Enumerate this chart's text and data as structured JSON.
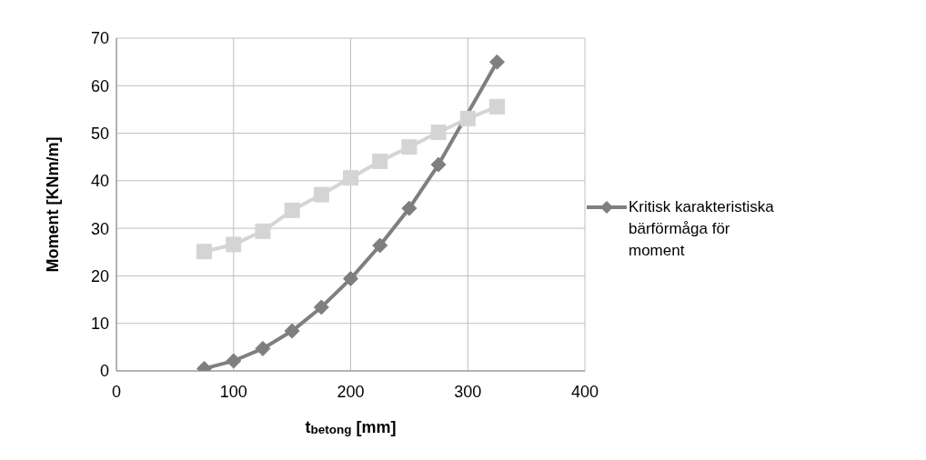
{
  "chart_data": {
    "type": "line",
    "xlabel": "t$_{betong}$ [mm]",
    "ylabel": "Moment [KNm/m]",
    "x": [
      75,
      100,
      125,
      150,
      175,
      200,
      225,
      250,
      275,
      300,
      325
    ],
    "series": [
      {
        "name": "Kritisk karakteristiska bärförmåga för moment",
        "color": "#7f7f7f",
        "marker": "diamond",
        "values": [
          0.5,
          2.1,
          4.7,
          8.4,
          13.4,
          19.4,
          26.4,
          34.2,
          43.4,
          null,
          65
        ]
      },
      {
        "color": "#d4d4d4",
        "marker": "square",
        "values": [
          25.1,
          26.6,
          29.4,
          33.8,
          37.1,
          40.6,
          44.1,
          47.1,
          50.2,
          53.1,
          55.6
        ]
      }
    ],
    "xlim": [
      0,
      400
    ],
    "xticks": [
      0,
      100,
      200,
      300,
      400
    ],
    "ylim": [
      0,
      70
    ],
    "yticks": [
      0,
      10,
      20,
      30,
      40,
      50,
      60,
      70
    ],
    "grid": true,
    "legend": "right",
    "line_style": "solid"
  }
}
